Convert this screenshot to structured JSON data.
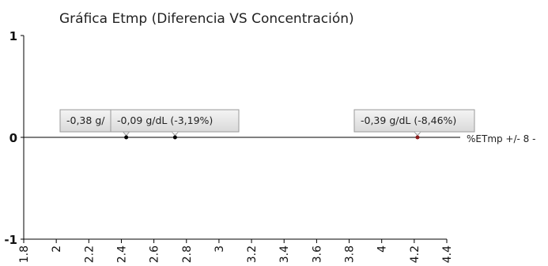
{
  "chart_data": {
    "type": "scatter",
    "title": "Gráfica Etmp (Diferencia VS Concentración)",
    "xlabel": "",
    "ylabel": "",
    "xlim": [
      1.8,
      4.4
    ],
    "ylim": [
      -1,
      1
    ],
    "x_ticks": [
      "1.8",
      "2",
      "2.2",
      "2.4",
      "2.6",
      "2.8",
      "3",
      "3.2",
      "3.4",
      "3.6",
      "3.8",
      "4",
      "4.2",
      "4.4"
    ],
    "y_ticks": [
      "1",
      "0",
      "-1"
    ],
    "grid": false,
    "legend_position": "right",
    "legend_label": "%ETmp +/- 8 -",
    "series": [
      {
        "name": "",
        "points": [
          {
            "x": 2.43,
            "y": 0,
            "label": "-0,38 g/"
          },
          {
            "x": 2.73,
            "y": 0,
            "label": "-0,09 g/dL (-3,19%)"
          },
          {
            "x": 4.22,
            "y": 0,
            "label": "-0,39 g/dL (-8,46%)"
          }
        ],
        "color": "#000000"
      }
    ],
    "reference_line": {
      "y": 0,
      "color": "#000000"
    }
  },
  "colors": {
    "axis": "#000000",
    "point_default": "#000000",
    "point_highlight": "#8b1a1a",
    "label_fill_top": "#f2f2f2",
    "label_fill_bottom": "#dcdcdc",
    "label_border": "#9a9a9a",
    "text": "#222222"
  }
}
